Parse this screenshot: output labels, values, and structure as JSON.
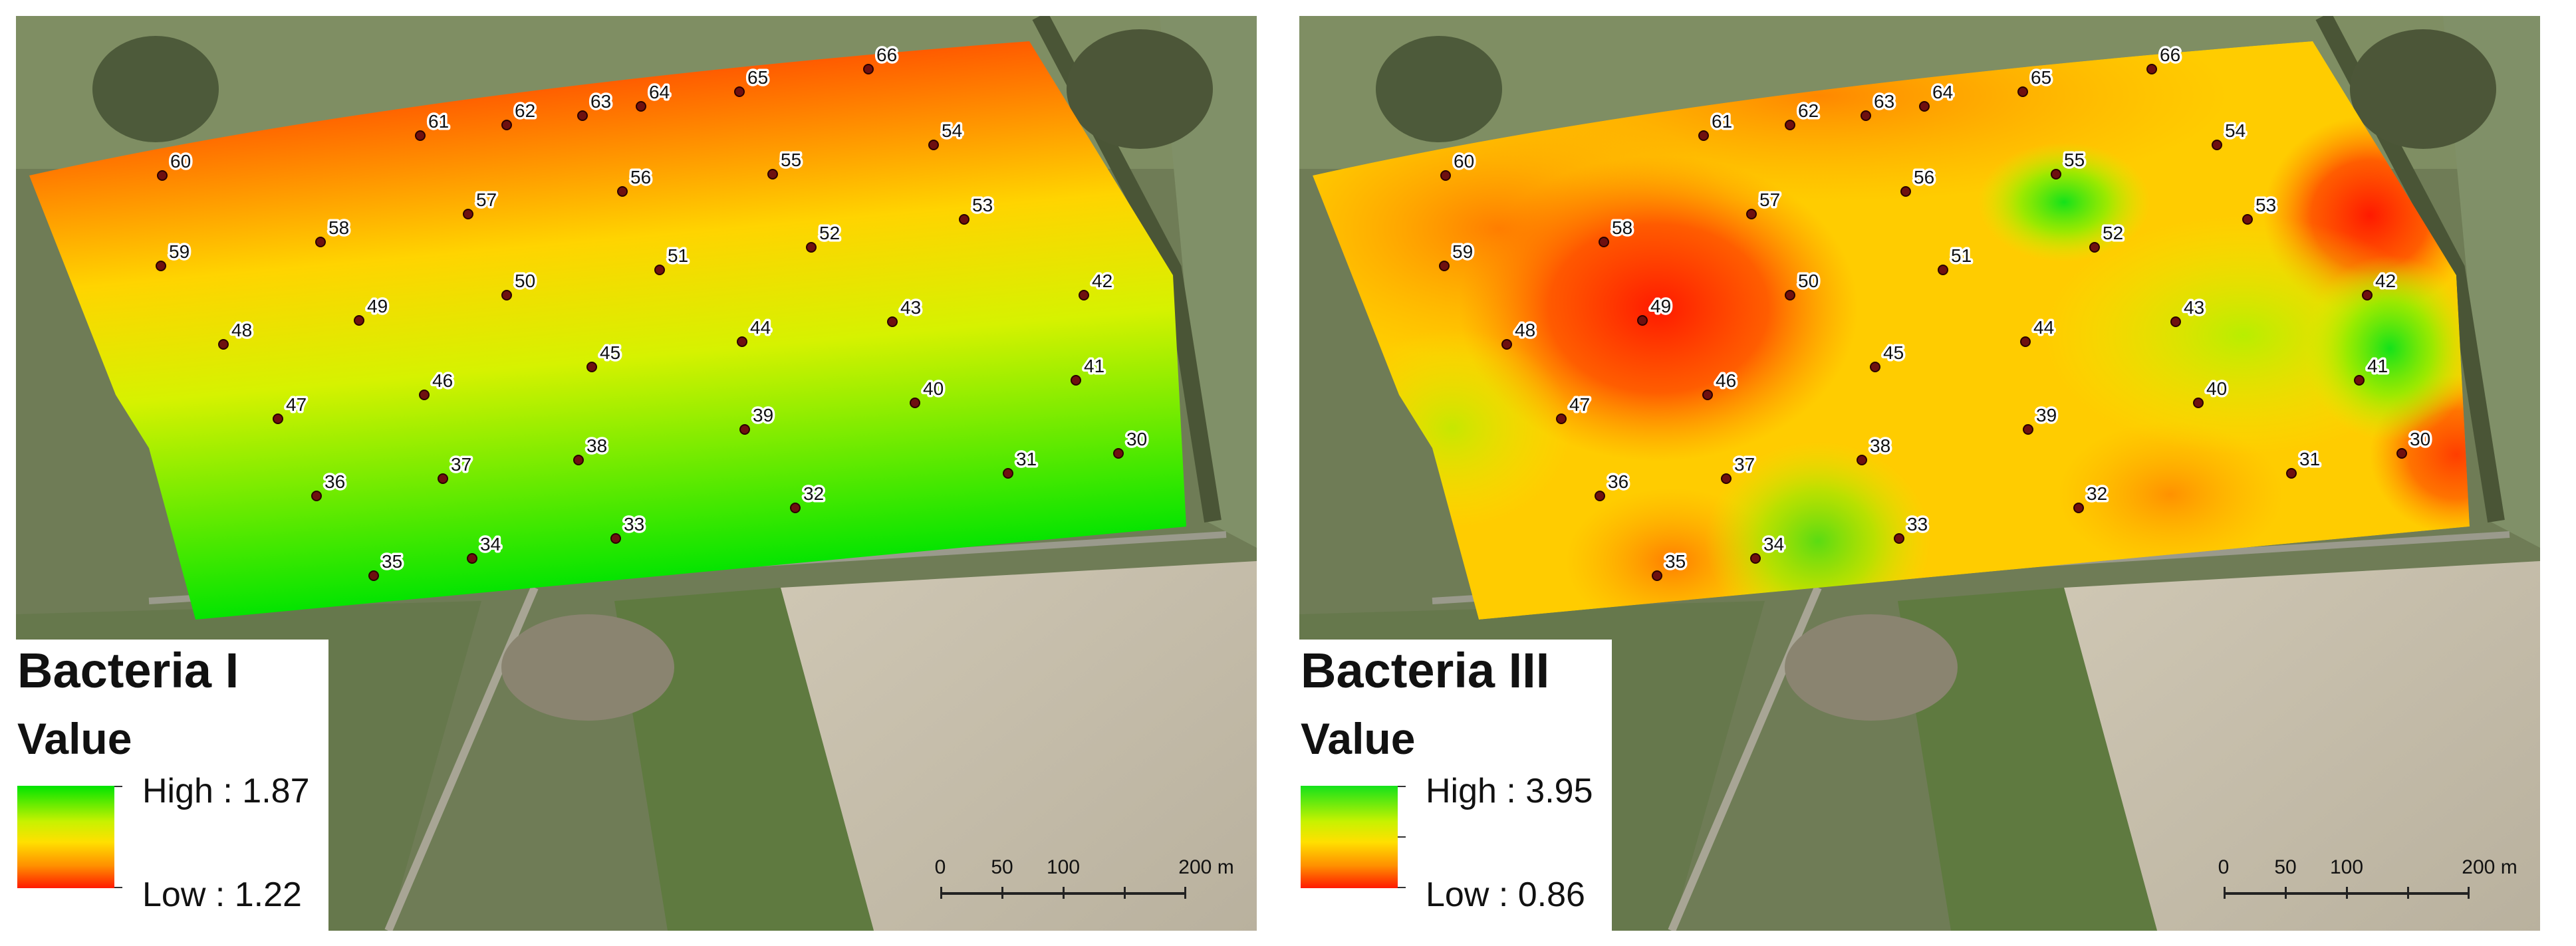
{
  "left": {
    "legend": {
      "title": "Bacteria I",
      "subtitle": "Value",
      "high": "High : 1.87",
      "low": "Low : 1.22"
    },
    "scale": {
      "labels": [
        "0",
        "50",
        "100",
        "200 m"
      ]
    },
    "ramp_colors": [
      "#00e400",
      "#ffe000",
      "#ff1a00"
    ]
  },
  "right": {
    "legend": {
      "title": "Bacteria III",
      "subtitle": "Value",
      "high": "High : 3.95",
      "low": "Low : 0.86"
    },
    "scale": {
      "labels": [
        "0",
        "50",
        "100",
        "200 m"
      ]
    },
    "ramp_colors": [
      "#14e21a",
      "#ffe000",
      "#ff1a00"
    ]
  },
  "sample_points": [
    "30",
    "31",
    "32",
    "33",
    "34",
    "35",
    "36",
    "37",
    "38",
    "39",
    "40",
    "41",
    "42",
    "43",
    "44",
    "45",
    "46",
    "47",
    "48",
    "49",
    "50",
    "51",
    "52",
    "53",
    "54",
    "55",
    "56",
    "57",
    "58",
    "59",
    "60",
    "61",
    "62",
    "63",
    "64",
    "65",
    "66"
  ]
}
